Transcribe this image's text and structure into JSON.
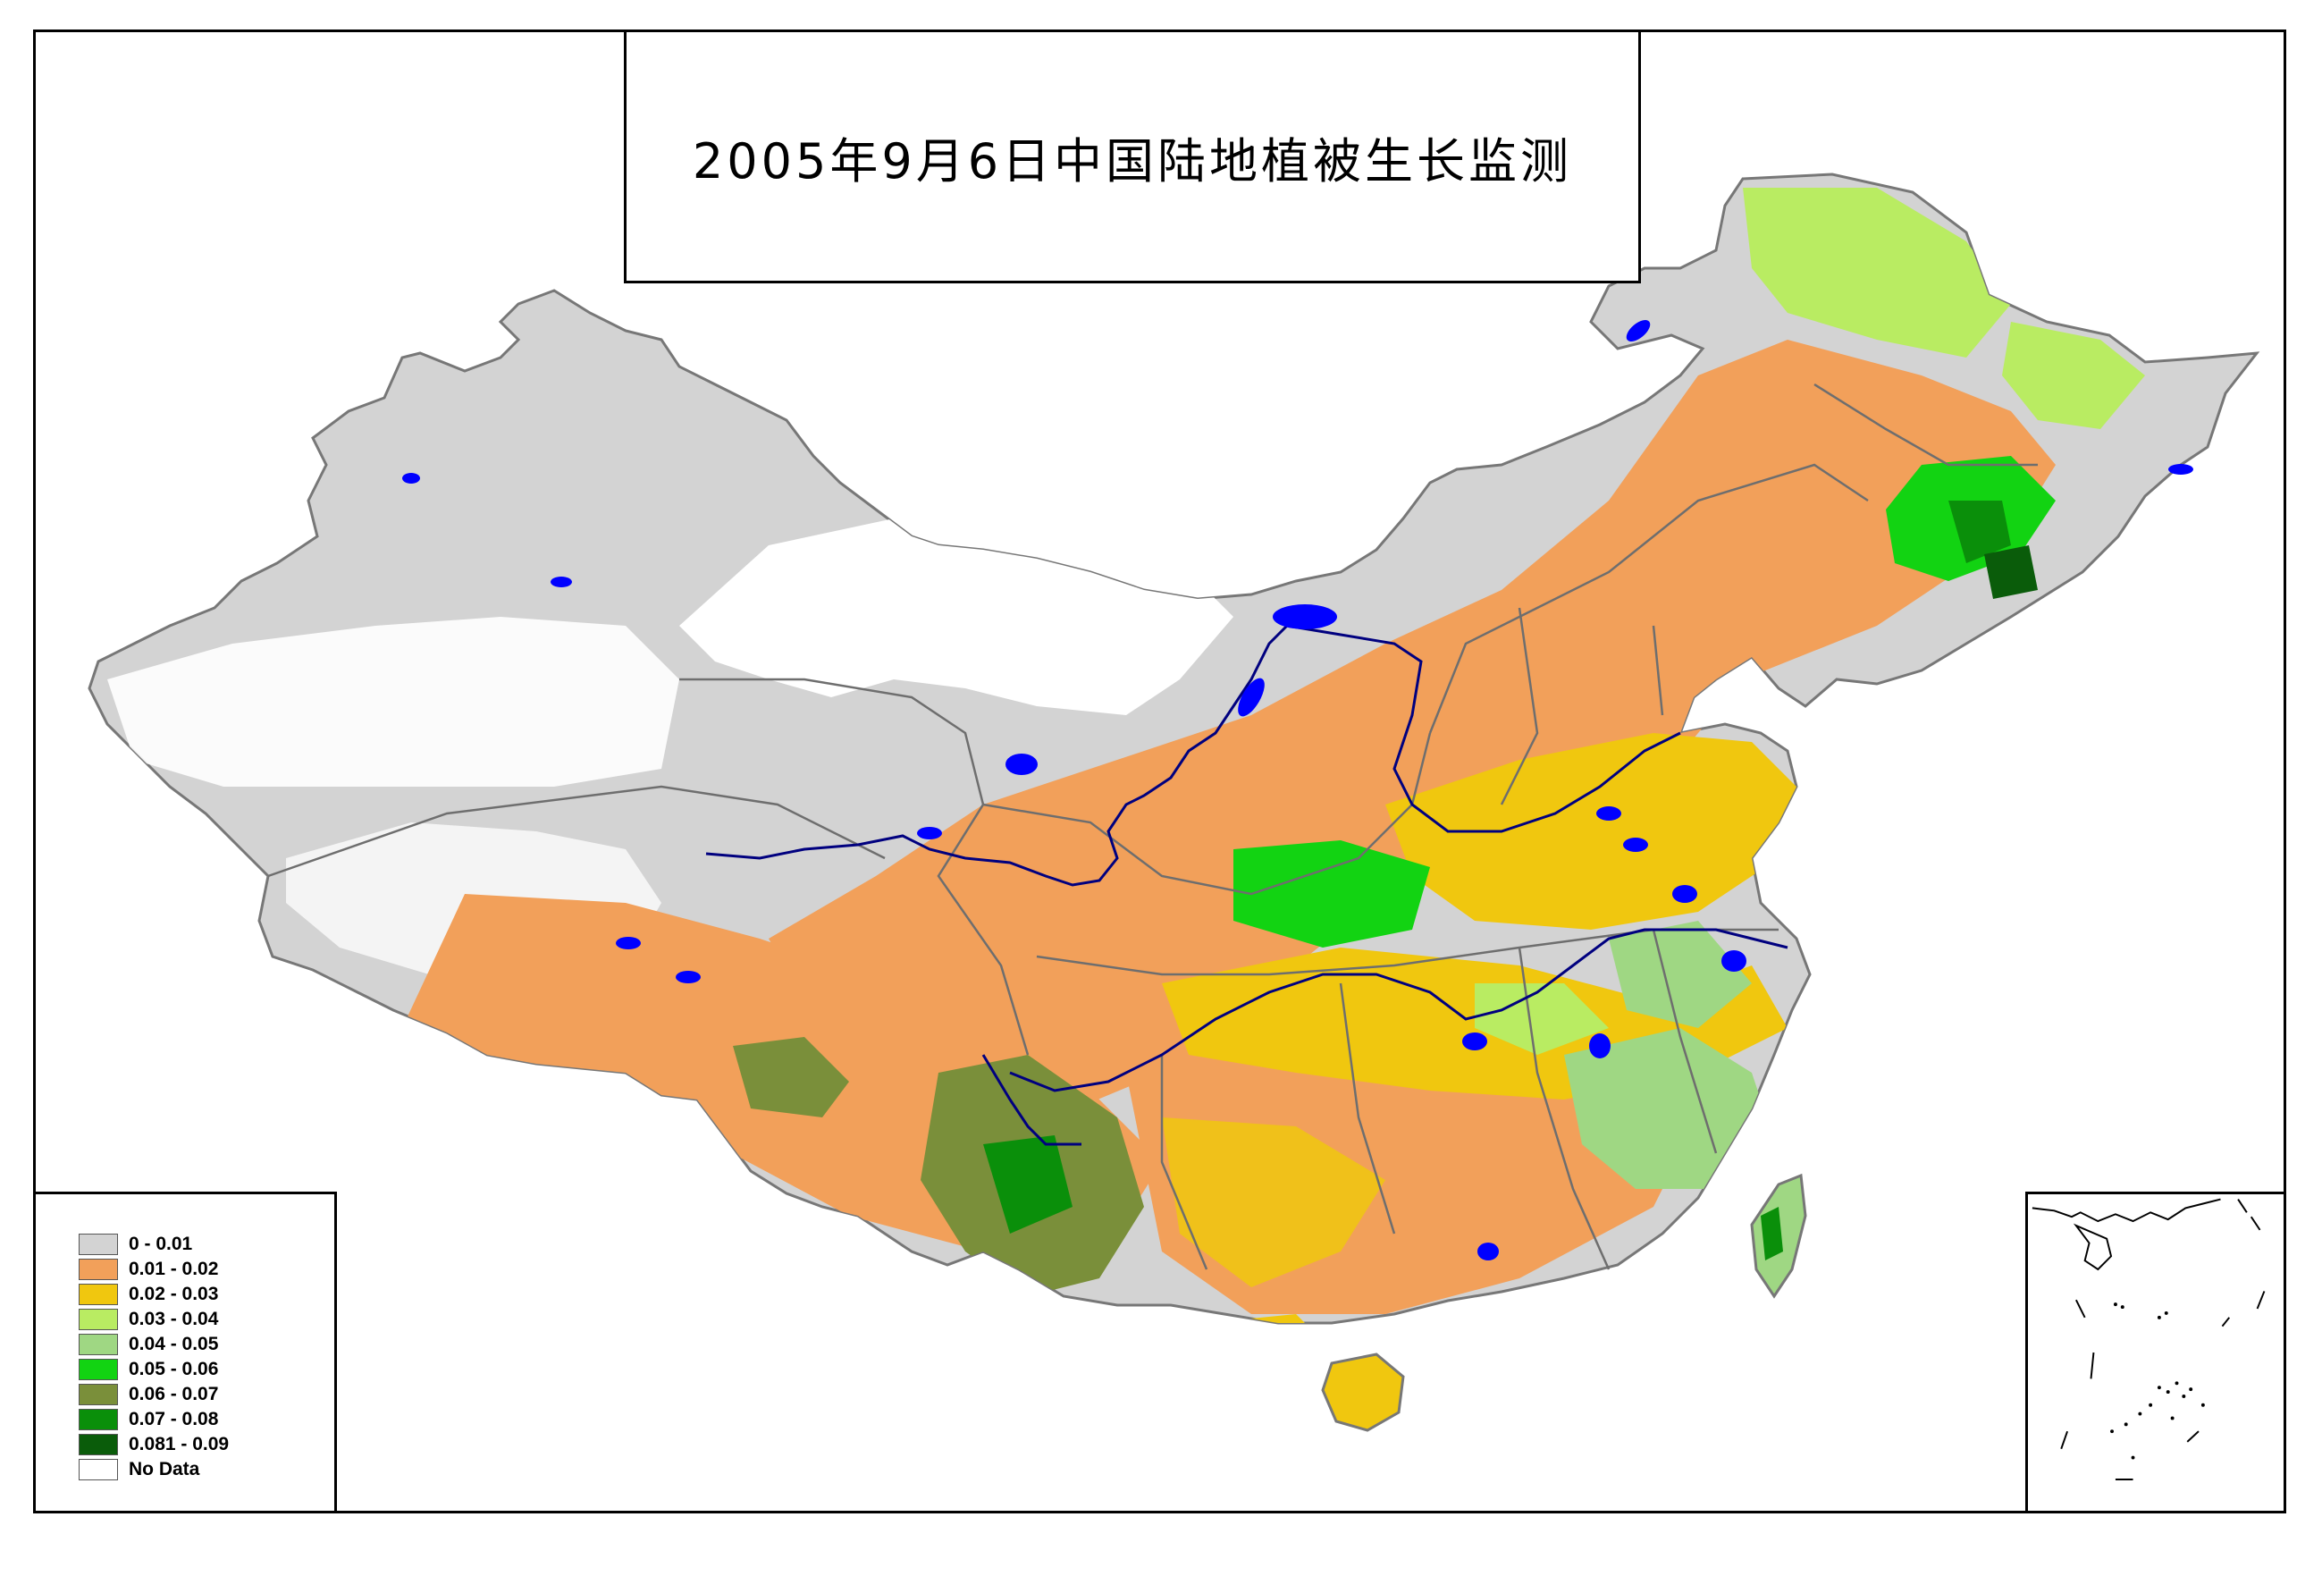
{
  "title": "2005年9月6日中国陆地植被生长监测",
  "legend": {
    "items": [
      {
        "label": "0 - 0.01",
        "color": "#d3d3d3"
      },
      {
        "label": "0.01 - 0.02",
        "color": "#f2a05a"
      },
      {
        "label": "0.02 - 0.03",
        "color": "#f0c70f"
      },
      {
        "label": "0.03 - 0.04",
        "color": "#b9ec62"
      },
      {
        "label": "0.04 - 0.05",
        "color": "#9fd783"
      },
      {
        "label": "0.05 - 0.06",
        "color": "#12d312"
      },
      {
        "label": "0.06 - 0.07",
        "color": "#7a8f3a"
      },
      {
        "label": "0.07 - 0.08",
        "color": "#0a8f0a"
      },
      {
        "label": "0.081 - 0.09",
        "color": "#0a5c0a"
      },
      {
        "label": "No Data",
        "color": "#ffffff"
      }
    ]
  },
  "colors": {
    "water": "#0000ff",
    "river": "#00007f",
    "boundary": "#6e6e6e"
  }
}
